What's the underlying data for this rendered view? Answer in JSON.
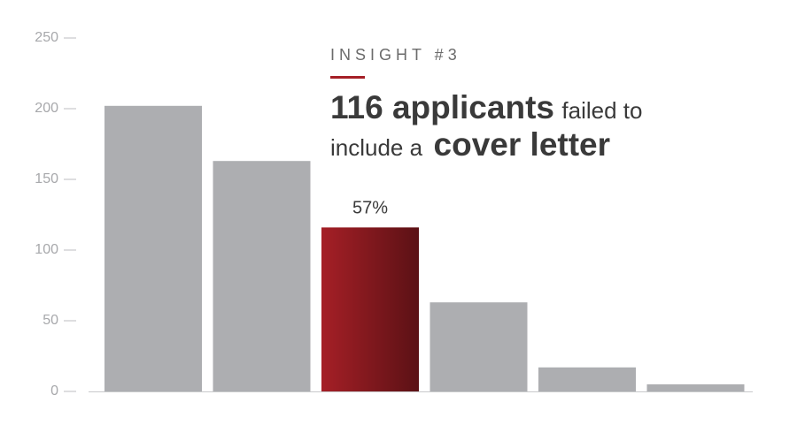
{
  "chart_data": {
    "type": "bar",
    "kicker": "INSIGHT #3",
    "headline": {
      "bold_1": "116 applicants",
      "text_1": "failed to",
      "text_2": "include a",
      "bold_2": "cover letter"
    },
    "annotation": "57%",
    "categories": [
      null,
      null,
      null,
      null,
      null,
      null
    ],
    "values": [
      202,
      163,
      116,
      63,
      17,
      5
    ],
    "colors": [
      "#adaeb1",
      "#adaeb1",
      "#a51f26",
      "#adaeb1",
      "#adaeb1",
      "#adaeb1"
    ],
    "ylim": [
      0,
      250
    ],
    "yticks": [
      0,
      50,
      100,
      150,
      200,
      250
    ],
    "grid": false
  }
}
